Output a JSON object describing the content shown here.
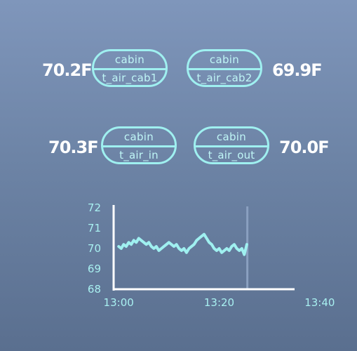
{
  "sensors": [
    {
      "group": "cabin",
      "name": "t_air_cab1",
      "reading": "70.2F"
    },
    {
      "group": "cabin",
      "name": "t_air_cab2",
      "reading": "69.9F"
    },
    {
      "group": "cabin",
      "name": "t_air_in",
      "reading": "70.3F"
    },
    {
      "group": "cabin",
      "name": "t_air_out",
      "reading": "70.0F"
    }
  ],
  "colors": {
    "accent": "#9ff0f0",
    "reading": "#ffffff",
    "axis": "#ffffff",
    "cursor": "#8aa0c0"
  },
  "chart_data": {
    "type": "line",
    "title": "",
    "xlabel": "",
    "ylabel": "",
    "ylim": [
      68,
      72
    ],
    "yticks": [
      "72",
      "71",
      "70",
      "69",
      "68"
    ],
    "xticks": [
      "13:00",
      "13:20",
      "13:40"
    ],
    "xlim_minutes": [
      12.0,
      48.0
    ],
    "cursor_minutes": 38.6,
    "series": [
      {
        "values": [
          [
            13.0,
            70.1
          ],
          [
            13.5,
            70.0
          ],
          [
            14.0,
            70.2
          ],
          [
            14.5,
            70.1
          ],
          [
            15.0,
            70.3
          ],
          [
            15.5,
            70.2
          ],
          [
            16.0,
            70.4
          ],
          [
            16.5,
            70.3
          ],
          [
            17.0,
            70.5
          ],
          [
            17.5,
            70.4
          ],
          [
            18.0,
            70.3
          ],
          [
            18.5,
            70.2
          ],
          [
            19.0,
            70.3
          ],
          [
            19.5,
            70.1
          ],
          [
            20.0,
            70.0
          ],
          [
            20.5,
            70.1
          ],
          [
            21.0,
            69.9
          ],
          [
            21.5,
            70.0
          ],
          [
            22.0,
            70.1
          ],
          [
            22.5,
            70.2
          ],
          [
            23.0,
            70.3
          ],
          [
            23.5,
            70.2
          ],
          [
            24.0,
            70.1
          ],
          [
            24.5,
            70.2
          ],
          [
            25.0,
            70.0
          ],
          [
            25.5,
            69.9
          ],
          [
            26.0,
            70.0
          ],
          [
            26.5,
            69.8
          ],
          [
            27.0,
            70.0
          ],
          [
            27.5,
            70.1
          ],
          [
            28.0,
            70.2
          ],
          [
            28.5,
            70.4
          ],
          [
            29.0,
            70.5
          ],
          [
            29.5,
            70.6
          ],
          [
            30.0,
            70.7
          ],
          [
            30.5,
            70.5
          ],
          [
            31.0,
            70.3
          ],
          [
            31.5,
            70.2
          ],
          [
            32.0,
            70.0
          ],
          [
            32.5,
            69.9
          ],
          [
            33.0,
            70.0
          ],
          [
            33.5,
            69.8
          ],
          [
            34.0,
            69.9
          ],
          [
            34.5,
            70.0
          ],
          [
            35.0,
            69.9
          ],
          [
            35.5,
            70.1
          ],
          [
            36.0,
            70.2
          ],
          [
            36.5,
            70.0
          ],
          [
            37.0,
            69.9
          ],
          [
            37.5,
            70.0
          ],
          [
            38.0,
            69.7
          ],
          [
            38.5,
            70.2
          ]
        ]
      }
    ]
  }
}
